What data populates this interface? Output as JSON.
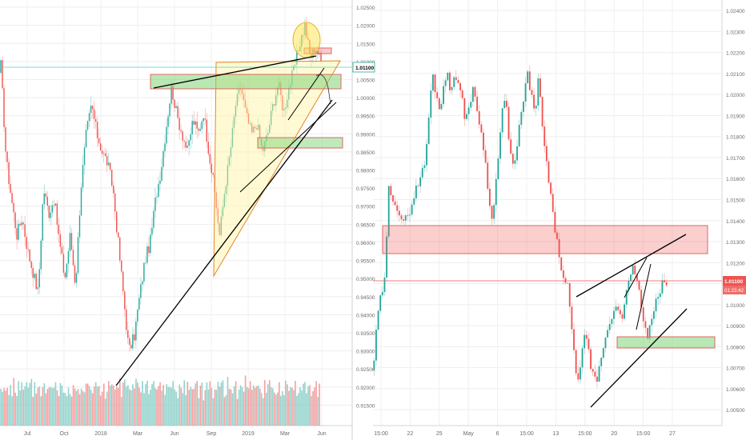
{
  "chart_data": [
    {
      "type": "candlestick",
      "panel": "left",
      "title": "",
      "grid": true,
      "x_tick_labels": [
        "Jul",
        "Oct",
        "2018",
        "Mar",
        "Jun",
        "Sep",
        "2019",
        "Mar",
        "Jun"
      ],
      "y_tick_labels": [
        "1.02500",
        "1.02000",
        "1.01500",
        "1.01000",
        "1.00500",
        "1.00000",
        "0.99500",
        "0.99000",
        "0.98500",
        "0.98000",
        "0.97500",
        "0.97000",
        "0.96500",
        "0.96000",
        "0.95500",
        "0.95000",
        "0.94500",
        "0.94000",
        "0.93500",
        "0.93000",
        "0.92500",
        "0.92000",
        "0.91500"
      ],
      "ylim": [
        0.912,
        1.027
      ],
      "last_price_label": "1.01100",
      "last_price": 1.011,
      "colors": {
        "up": "#26a69a",
        "down": "#ef5350",
        "volume_up": "#80cbc4",
        "volume_down": "#f48f8f"
      },
      "close_path": [
        [
          0,
          1.009
        ],
        [
          3,
          0.983
        ],
        [
          6,
          0.972
        ],
        [
          9,
          0.962
        ],
        [
          12,
          0.967
        ],
        [
          15,
          0.958
        ],
        [
          18,
          0.952
        ],
        [
          21,
          0.946
        ],
        [
          24,
          0.975
        ],
        [
          27,
          0.968
        ],
        [
          30,
          0.972
        ],
        [
          33,
          0.96
        ],
        [
          36,
          0.95
        ],
        [
          39,
          0.962
        ],
        [
          42,
          0.948
        ],
        [
          45,
          0.975
        ],
        [
          48,
          0.99
        ],
        [
          51,
          0.998
        ],
        [
          54,
          0.99
        ],
        [
          57,
          0.985
        ],
        [
          60,
          0.982
        ],
        [
          63,
          0.975
        ],
        [
          66,
          0.96
        ],
        [
          69,
          0.945
        ],
        [
          72,
          0.93
        ],
        [
          75,
          0.934
        ],
        [
          78,
          0.945
        ],
        [
          81,
          0.955
        ],
        [
          84,
          0.96
        ],
        [
          87,
          0.972
        ],
        [
          90,
          0.98
        ],
        [
          93,
          0.992
        ],
        [
          96,
          1.003
        ],
        [
          99,
          0.995
        ],
        [
          102,
          0.99
        ],
        [
          105,
          0.985
        ],
        [
          108,
          0.994
        ],
        [
          111,
          0.99
        ],
        [
          114,
          0.996
        ],
        [
          117,
          0.985
        ],
        [
          120,
          0.975
        ],
        [
          123,
          0.962
        ],
        [
          126,
          0.975
        ],
        [
          129,
          0.985
        ],
        [
          132,
          0.998
        ],
        [
          135,
          1.003
        ],
        [
          138,
          0.995
        ],
        [
          141,
          0.99
        ],
        [
          144,
          0.993
        ],
        [
          147,
          0.985
        ],
        [
          150,
          0.99
        ],
        [
          153,
          0.998
        ],
        [
          156,
          1.004
        ],
        [
          159,
          0.996
        ],
        [
          162,
          1.003
        ],
        [
          165,
          1.008
        ],
        [
          168,
          1.015
        ],
        [
          171,
          1.02
        ],
        [
          174,
          1.011
        ],
        [
          177,
          1.014
        ],
        [
          180,
          1.01
        ]
      ],
      "volume_series": [
        28,
        24,
        27,
        31,
        22,
        26,
        30,
        25,
        33,
        27,
        24,
        29,
        26,
        31,
        23,
        28,
        30,
        25,
        27,
        32,
        24,
        29,
        26,
        30,
        28,
        23,
        27,
        31,
        25,
        29,
        33,
        26,
        24,
        28,
        30,
        27,
        25,
        29,
        31,
        26,
        28,
        24,
        30,
        27,
        25,
        29,
        32,
        26,
        28,
        23,
        27,
        30,
        25,
        29,
        26,
        31,
        28,
        24,
        27,
        30,
        26
      ],
      "annotations": {
        "support_trendline": [
          [
            0.925,
            0.954
          ],
          [
            1.008,
            0.971
          ]
        ],
        "resistance_trendline": [
          [
            1.005,
            0.97
          ],
          [
            1.018,
            0.946
          ]
        ],
        "resistance_zone": [
          1.005,
          1.01
        ],
        "support_zone": [
          0.988,
          0.991
        ],
        "top_zone": [
          1.014,
          1.016
        ],
        "triangle": [
          [
            1.013,
            0.987
          ],
          [
            0.955,
            0.984
          ],
          [
            1.014,
            0.934
          ]
        ],
        "circle_center": [
          1.021,
          0.946
        ]
      }
    },
    {
      "type": "candlestick",
      "panel": "right",
      "title": "",
      "grid": true,
      "x_tick_labels": [
        "15:00",
        "22",
        "25",
        "May",
        "6",
        "15:00",
        "13",
        "15:00",
        "20",
        "15:00",
        "27"
      ],
      "y_tick_labels": [
        "1.02400",
        "1.02300",
        "1.02200",
        "1.02100",
        "1.02000",
        "1.01900",
        "1.01800",
        "1.01700",
        "1.01600",
        "1.01500",
        "1.01400",
        "1.01300",
        "1.01200",
        "1.01100",
        "1.01000",
        "1.00900",
        "1.00800",
        "1.00700",
        "1.00600",
        "1.00500"
      ],
      "ylim": [
        1.0047,
        1.0245
      ],
      "last_price_label": "1.01100",
      "countdown_label": "01:23:42",
      "last_price": 1.011,
      "colors": {
        "up": "#26a69a",
        "down": "#ef5350"
      },
      "close_path": [
        [
          0,
          1.0074
        ],
        [
          2,
          1.0095
        ],
        [
          4,
          1.0105
        ],
        [
          6,
          1.0112
        ],
        [
          8,
          1.0155
        ],
        [
          10,
          1.0152
        ],
        [
          12,
          1.0148
        ],
        [
          14,
          1.0143
        ],
        [
          16,
          1.0138
        ],
        [
          18,
          1.0142
        ],
        [
          20,
          1.0146
        ],
        [
          22,
          1.0152
        ],
        [
          24,
          1.0158
        ],
        [
          26,
          1.0162
        ],
        [
          28,
          1.0168
        ],
        [
          30,
          1.019
        ],
        [
          32,
          1.021
        ],
        [
          34,
          1.02
        ],
        [
          36,
          1.0192
        ],
        [
          38,
          1.0205
        ],
        [
          40,
          1.021
        ],
        [
          42,
          1.02
        ],
        [
          44,
          1.0212
        ],
        [
          46,
          1.0205
        ],
        [
          48,
          1.0198
        ],
        [
          50,
          1.0188
        ],
        [
          52,
          1.0195
        ],
        [
          54,
          1.0202
        ],
        [
          56,
          1.0195
        ],
        [
          58,
          1.0185
        ],
        [
          60,
          1.0175
        ],
        [
          62,
          1.0158
        ],
        [
          64,
          1.014
        ],
        [
          66,
          1.0152
        ],
        [
          68,
          1.017
        ],
        [
          70,
          1.0193
        ],
        [
          72,
          1.0198
        ],
        [
          74,
          1.0175
        ],
        [
          76,
          1.0165
        ],
        [
          78,
          1.0175
        ],
        [
          80,
          1.0188
        ],
        [
          82,
          1.0198
        ],
        [
          84,
          1.021
        ],
        [
          86,
          1.02
        ],
        [
          88,
          1.019
        ],
        [
          90,
          1.0208
        ],
        [
          92,
          1.0185
        ],
        [
          94,
          1.017
        ],
        [
          96,
          1.0155
        ],
        [
          98,
          1.0142
        ],
        [
          100,
          1.013
        ],
        [
          102,
          1.012
        ],
        [
          104,
          1.011
        ],
        [
          106,
          1.0108
        ],
        [
          108,
          1.009
        ],
        [
          110,
          1.007
        ],
        [
          112,
          1.0065
        ],
        [
          114,
          1.0078
        ],
        [
          116,
          1.0088
        ],
        [
          118,
          1.0072
        ],
        [
          120,
          1.0065
        ],
        [
          122,
          1.0062
        ],
        [
          124,
          1.0075
        ],
        [
          126,
          1.008
        ],
        [
          128,
          1.009
        ],
        [
          130,
          1.0093
        ],
        [
          132,
          1.01
        ],
        [
          134,
          1.0098
        ],
        [
          136,
          1.0095
        ],
        [
          138,
          1.0105
        ],
        [
          140,
          1.0112
        ],
        [
          142,
          1.0118
        ],
        [
          144,
          1.0112
        ],
        [
          146,
          1.01
        ],
        [
          148,
          1.0088
        ],
        [
          150,
          1.0085
        ],
        [
          152,
          1.0093
        ],
        [
          154,
          1.01
        ],
        [
          156,
          1.0106
        ],
        [
          158,
          1.011
        ],
        [
          160,
          1.011
        ]
      ],
      "annotations": {
        "resistance_zone": [
          1.0124,
          1.0138
        ],
        "support_zone": [
          1.0076,
          1.0081
        ],
        "upper_trendline": [
          [
            1.0105,
            1.0134
          ]
        ],
        "lower_trendline": [
          [
            1.0052,
            1.0102
          ]
        ],
        "wedge_lines": true,
        "price_line": 1.011
      }
    }
  ]
}
